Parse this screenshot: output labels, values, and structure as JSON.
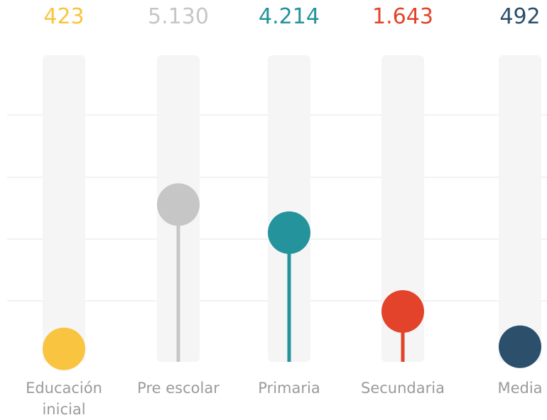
{
  "chart_data": {
    "type": "lollipop",
    "categories": [
      "Educación inicial",
      "Pre escolar",
      "Primaria",
      "Secundaria",
      "Media"
    ],
    "values": [
      423,
      5130,
      4214,
      1643,
      492
    ],
    "value_labels": [
      "423",
      "5.130",
      "4.214",
      "1.643",
      "492"
    ],
    "colors": [
      "#f9c440",
      "#c6c6c6",
      "#24939c",
      "#e2432a",
      "#2c4f6b"
    ],
    "ylim": [
      0,
      10000
    ]
  }
}
